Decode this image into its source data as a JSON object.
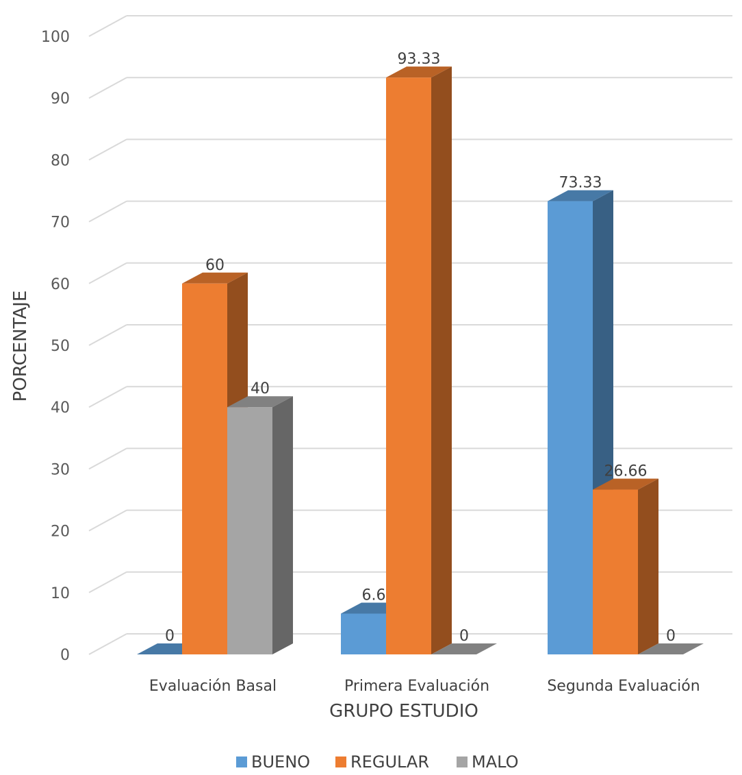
{
  "chart_data": {
    "type": "bar",
    "categories": [
      "Evaluación Basal",
      "Primera Evaluación",
      "Segunda Evaluación"
    ],
    "series": [
      {
        "name": "BUENO",
        "values": [
          0,
          6.6,
          73.33
        ],
        "labels": [
          "0",
          "6.6",
          "73.33"
        ],
        "color": "#5B9BD5"
      },
      {
        "name": "REGULAR",
        "values": [
          60,
          93.33,
          26.66
        ],
        "labels": [
          "60",
          "93.33",
          "26.66"
        ],
        "color": "#ED7D31"
      },
      {
        "name": "MALO",
        "values": [
          40,
          0,
          0
        ],
        "labels": [
          "40",
          "0",
          "0"
        ],
        "color": "#A5A5A5"
      }
    ],
    "xlabel": "GRUPO ESTUDIO",
    "ylabel": "PORCENTAJE",
    "ylim": [
      0,
      100
    ],
    "yticks": [
      0,
      10,
      20,
      30,
      40,
      50,
      60,
      70,
      80,
      90,
      100
    ],
    "grid": true,
    "legend_position": "bottom",
    "style": "3d-clustered-column"
  }
}
